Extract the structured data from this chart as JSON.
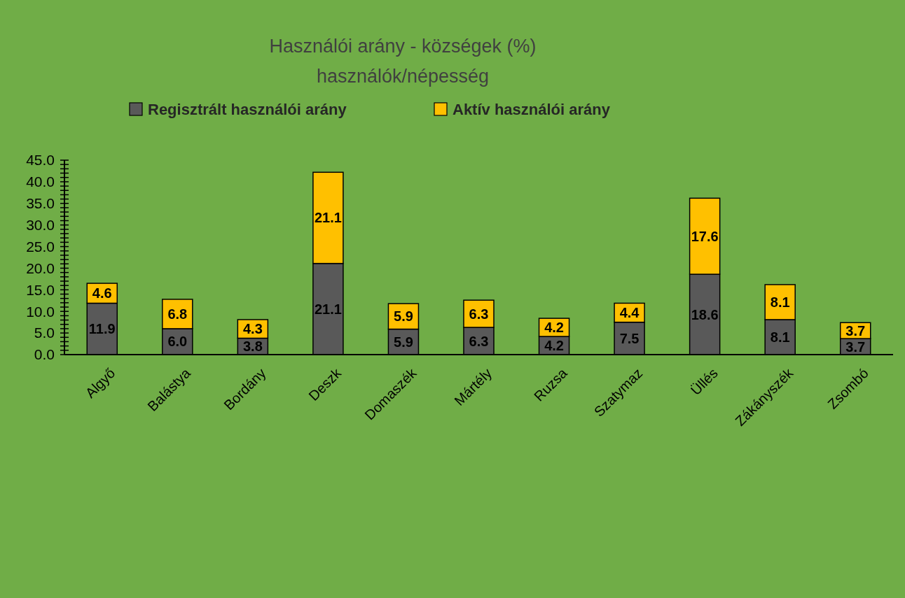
{
  "chart_data": {
    "type": "bar",
    "title": "Használói arány - községek (%)",
    "subtitle": "használók/népesség",
    "stacked": true,
    "legend": "top",
    "grid": false,
    "categories": [
      "Algyő",
      "Balástya",
      "Bordány",
      "Deszk",
      "Domaszék",
      "Mártély",
      "Ruzsa",
      "Szatymaz",
      "Üllés",
      "Zákányszék",
      "Zsombó"
    ],
    "series": [
      {
        "name": "Regisztrált használói arány",
        "color": "#595959",
        "values": [
          11.9,
          6.0,
          3.8,
          21.1,
          5.9,
          6.3,
          4.2,
          7.5,
          18.6,
          8.1,
          3.7
        ],
        "value_labels": [
          "11.9",
          "6.0",
          "3.8",
          "21.1",
          "5.9",
          "6.3",
          "4.2",
          "7.5",
          "18.6",
          "8.1",
          "3.7"
        ]
      },
      {
        "name": "Aktív használói arány",
        "color": "#ffc000",
        "values": [
          4.6,
          6.8,
          4.3,
          21.1,
          5.9,
          6.3,
          4.2,
          4.4,
          17.6,
          8.1,
          3.7
        ],
        "value_labels": [
          "4.6",
          "6.8",
          "4.3",
          "21.1",
          "5.9",
          "6.3",
          "4.2",
          "4.4",
          "17.6",
          "8.1",
          "3.7"
        ]
      }
    ],
    "ylim": [
      0,
      45
    ],
    "yticks": [
      {
        "value": 0,
        "label": "0.0"
      },
      {
        "value": 1,
        "label": null
      },
      {
        "value": 2,
        "label": null
      },
      {
        "value": 3,
        "label": null
      },
      {
        "value": 4,
        "label": null
      },
      {
        "value": 5,
        "label": "5.0"
      },
      {
        "value": 6,
        "label": null
      },
      {
        "value": 7,
        "label": null
      },
      {
        "value": 8,
        "label": null
      },
      {
        "value": 9,
        "label": null
      },
      {
        "value": 10,
        "label": "10.0"
      },
      {
        "value": 11,
        "label": null
      },
      {
        "value": 12,
        "label": null
      },
      {
        "value": 13,
        "label": null
      },
      {
        "value": 14,
        "label": null
      },
      {
        "value": 15,
        "label": "15.0"
      },
      {
        "value": 16,
        "label": null
      },
      {
        "value": 17,
        "label": null
      },
      {
        "value": 18,
        "label": null
      },
      {
        "value": 19,
        "label": null
      },
      {
        "value": 20,
        "label": "20.0"
      },
      {
        "value": 21,
        "label": null
      },
      {
        "value": 22,
        "label": null
      },
      {
        "value": 23,
        "label": null
      },
      {
        "value": 24,
        "label": null
      },
      {
        "value": 25,
        "label": "25.0"
      },
      {
        "value": 26,
        "label": null
      },
      {
        "value": 27,
        "label": null
      },
      {
        "value": 28,
        "label": null
      },
      {
        "value": 29,
        "label": null
      },
      {
        "value": 30,
        "label": "30.0"
      },
      {
        "value": 31,
        "label": null
      },
      {
        "value": 32,
        "label": null
      },
      {
        "value": 33,
        "label": null
      },
      {
        "value": 34,
        "label": null
      },
      {
        "value": 35,
        "label": "35.0"
      },
      {
        "value": 36,
        "label": null
      },
      {
        "value": 37,
        "label": null
      },
      {
        "value": 38,
        "label": null
      },
      {
        "value": 39,
        "label": null
      },
      {
        "value": 40,
        "label": "40.0"
      },
      {
        "value": 41,
        "label": null
      },
      {
        "value": 42,
        "label": null
      },
      {
        "value": 43,
        "label": null
      },
      {
        "value": 44,
        "label": null
      },
      {
        "value": 45,
        "label": "45.0"
      }
    ]
  }
}
